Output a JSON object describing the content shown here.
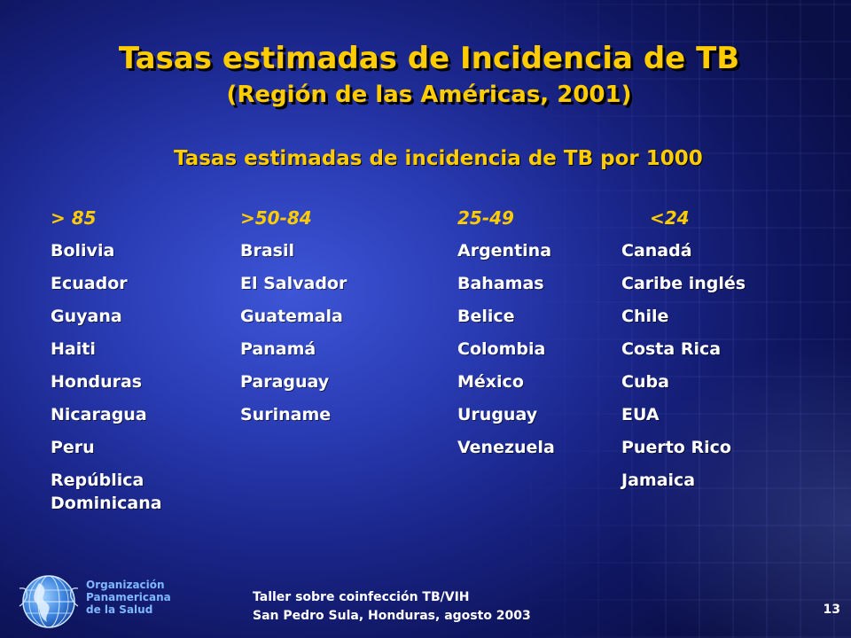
{
  "slide": {
    "title": "Tasas estimadas de Incidencia de TB",
    "subtitle": "(Región de las Américas, 2001)",
    "table_heading": "Tasas estimadas de incidencia de TB por 1000",
    "columns": [
      {
        "header": "> 85",
        "items": [
          "Bolivia",
          "Ecuador",
          "Guyana",
          "Haiti",
          "Honduras",
          "Nicaragua",
          "Peru",
          "República\nDominicana"
        ]
      },
      {
        "header": ">50-84",
        "items": [
          "Brasil",
          "El Salvador",
          "Guatemala",
          "Panamá",
          "Paraguay",
          "Suriname"
        ]
      },
      {
        "header": "25-49",
        "items": [
          "Argentina",
          "Bahamas",
          "Belice",
          "Colombia",
          "México",
          "Uruguay",
          "Venezuela"
        ]
      },
      {
        "header": "<24",
        "items": [
          "Canadá",
          "Caribe inglés",
          "Chile",
          "Costa Rica",
          "Cuba",
          "EUA",
          "Puerto Rico",
          "Jamaica"
        ]
      }
    ]
  },
  "footer": {
    "organization": [
      "Organización",
      "Panamericana",
      "de la Salud"
    ],
    "event_line_1": "Taller sobre coinfección TB/VIH",
    "event_line_2": "San Pedro Sula, Honduras, agosto 2003",
    "page_number": "13"
  },
  "colors": {
    "title": "#ffcc00",
    "body_text": "#ffffff",
    "org_text": "#7fb8ff",
    "background": "#1a268a"
  },
  "icons": {
    "logo": "paho-globe-logo"
  }
}
